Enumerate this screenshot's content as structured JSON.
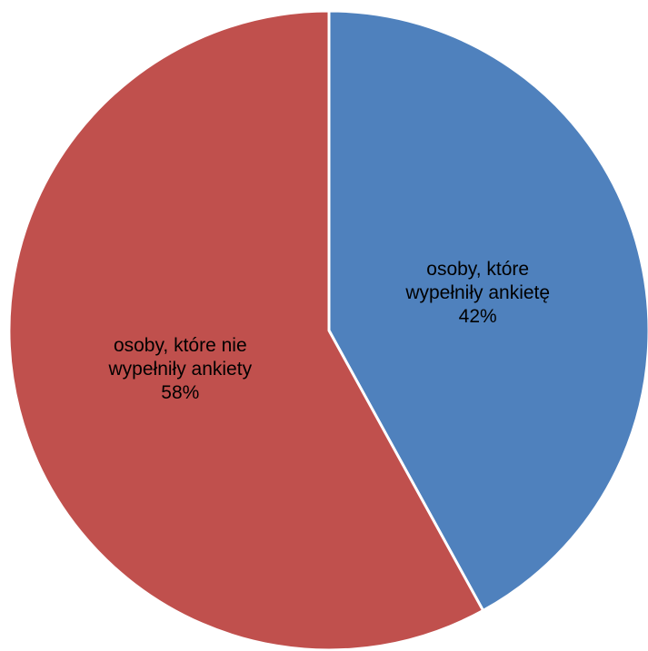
{
  "chart_data": {
    "type": "pie",
    "title": "",
    "start_angle": "12 o'clock",
    "direction": "clockwise",
    "legend": "none",
    "slices": [
      {
        "label_lines": [
          "osoby, które",
          "wypełniły ankietę"
        ],
        "percent_label": "42%",
        "value": 42,
        "color": "#4F81BD"
      },
      {
        "label_lines": [
          "osoby, które nie",
          "wypełniły ankiety"
        ],
        "percent_label": "58%",
        "value": 58,
        "color": "#C0504D"
      }
    ]
  }
}
